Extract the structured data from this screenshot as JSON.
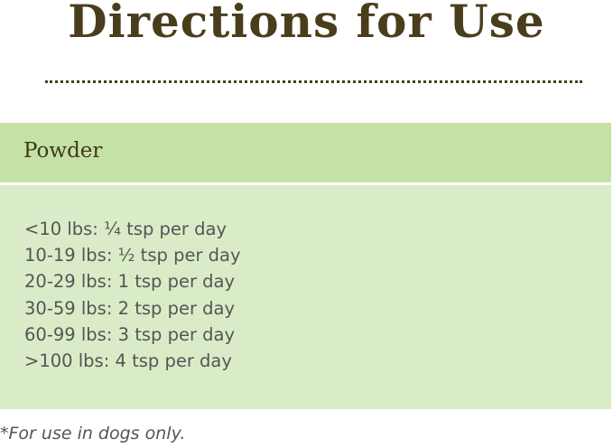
{
  "title": "Directions for Use",
  "section": {
    "heading": "Powder",
    "dosages": [
      "<10 lbs: ¼ tsp per day",
      "10-19 lbs: ½ tsp per day",
      "20-29 lbs: 1 tsp per day",
      "30-59 lbs: 2 tsp per day",
      "60-99 lbs: 3 tsp per day",
      ">100 lbs: 4 tsp per day"
    ]
  },
  "footnote": "*For use in dogs only.",
  "colors": {
    "title": "#4a3d1c",
    "header_bg": "#c5e1a5",
    "body_bg": "#daecc7"
  }
}
